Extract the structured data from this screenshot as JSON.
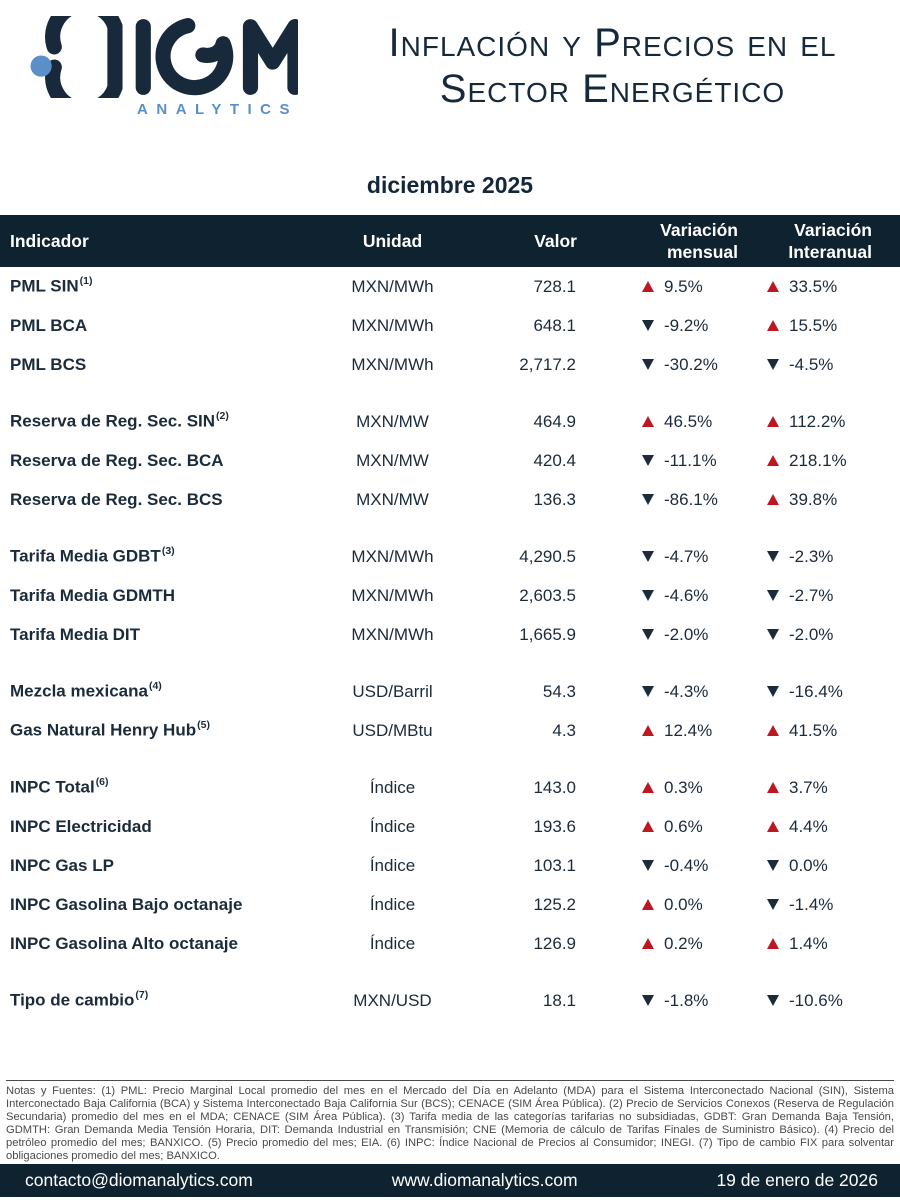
{
  "colors": {
    "navy": "#0e2230",
    "ink": "#1b2b3a",
    "blue": "#5b8fc9",
    "red": "#bd1722"
  },
  "logo": {
    "name": "DIOM",
    "sub": "ANALYTICS"
  },
  "title": {
    "line1": "Inflación y Precios en el",
    "line2": "Sector Energético"
  },
  "period": "diciembre 2025",
  "table": {
    "headers": {
      "indicator": "Indicador",
      "unit": "Unidad",
      "value": "Valor",
      "monthly_line1": "Variación",
      "monthly_line2": "mensual",
      "yearly_line1": "Variación",
      "yearly_line2": "Interanual"
    },
    "legend": {
      "up_icon": "red-up-triangle",
      "down_icon": "navy-down-triangle"
    },
    "groups": [
      [
        {
          "indicator": "PML SIN",
          "sup": "(1)",
          "unit": "MXN/MWh",
          "value": "728.1",
          "monthly": {
            "dir": "up",
            "value": "9.5%"
          },
          "yearly": {
            "dir": "up",
            "value": "33.5%"
          }
        },
        {
          "indicator": "PML BCA",
          "sup": "",
          "unit": "MXN/MWh",
          "value": "648.1",
          "monthly": {
            "dir": "down",
            "value": "-9.2%"
          },
          "yearly": {
            "dir": "up",
            "value": "15.5%"
          }
        },
        {
          "indicator": "PML BCS",
          "sup": "",
          "unit": "MXN/MWh",
          "value": "2,717.2",
          "monthly": {
            "dir": "down",
            "value": "-30.2%"
          },
          "yearly": {
            "dir": "down",
            "value": "-4.5%"
          }
        }
      ],
      [
        {
          "indicator": "Reserva de Reg. Sec. SIN",
          "sup": "(2)",
          "unit": "MXN/MW",
          "value": "464.9",
          "monthly": {
            "dir": "up",
            "value": "46.5%"
          },
          "yearly": {
            "dir": "up",
            "value": "112.2%"
          }
        },
        {
          "indicator": "Reserva de Reg. Sec. BCA",
          "sup": "",
          "unit": "MXN/MW",
          "value": "420.4",
          "monthly": {
            "dir": "down",
            "value": "-11.1%"
          },
          "yearly": {
            "dir": "up",
            "value": "218.1%"
          }
        },
        {
          "indicator": "Reserva de Reg. Sec. BCS",
          "sup": "",
          "unit": "MXN/MW",
          "value": "136.3",
          "monthly": {
            "dir": "down",
            "value": "-86.1%"
          },
          "yearly": {
            "dir": "up",
            "value": "39.8%"
          }
        }
      ],
      [
        {
          "indicator": "Tarifa Media GDBT",
          "sup": "(3)",
          "unit": "MXN/MWh",
          "value": "4,290.5",
          "monthly": {
            "dir": "down",
            "value": "-4.7%"
          },
          "yearly": {
            "dir": "down",
            "value": "-2.3%"
          }
        },
        {
          "indicator": "Tarifa Media GDMTH",
          "sup": "",
          "unit": "MXN/MWh",
          "value": "2,603.5",
          "monthly": {
            "dir": "down",
            "value": "-4.6%"
          },
          "yearly": {
            "dir": "down",
            "value": "-2.7%"
          }
        },
        {
          "indicator": "Tarifa Media DIT",
          "sup": "",
          "unit": "MXN/MWh",
          "value": "1,665.9",
          "monthly": {
            "dir": "down",
            "value": "-2.0%"
          },
          "yearly": {
            "dir": "down",
            "value": "-2.0%"
          }
        }
      ],
      [
        {
          "indicator": "Mezcla mexicana",
          "sup": "(4)",
          "unit": "USD/Barril",
          "value": "54.3",
          "monthly": {
            "dir": "down",
            "value": "-4.3%"
          },
          "yearly": {
            "dir": "down",
            "value": "-16.4%"
          }
        },
        {
          "indicator": "Gas Natural Henry Hub",
          "sup": "(5)",
          "unit": "USD/MBtu",
          "value": "4.3",
          "monthly": {
            "dir": "up",
            "value": "12.4%"
          },
          "yearly": {
            "dir": "up",
            "value": "41.5%"
          }
        }
      ],
      [
        {
          "indicator": "INPC Total",
          "sup": "(6)",
          "unit": "Índice",
          "value": "143.0",
          "monthly": {
            "dir": "up",
            "value": "0.3%"
          },
          "yearly": {
            "dir": "up",
            "value": "3.7%"
          }
        },
        {
          "indicator": "INPC Electricidad",
          "sup": "",
          "unit": "Índice",
          "value": "193.6",
          "monthly": {
            "dir": "up",
            "value": "0.6%"
          },
          "yearly": {
            "dir": "up",
            "value": "4.4%"
          }
        },
        {
          "indicator": "INPC Gas LP",
          "sup": "",
          "unit": "Índice",
          "value": "103.1",
          "monthly": {
            "dir": "down",
            "value": "-0.4%"
          },
          "yearly": {
            "dir": "down",
            "value": "0.0%"
          }
        },
        {
          "indicator": "INPC Gasolina Bajo octanaje",
          "sup": "",
          "unit": "Índice",
          "value": "125.2",
          "monthly": {
            "dir": "up",
            "value": "0.0%"
          },
          "yearly": {
            "dir": "down",
            "value": "-1.4%"
          }
        },
        {
          "indicator": "INPC Gasolina Alto octanaje",
          "sup": "",
          "unit": "Índice",
          "value": "126.9",
          "monthly": {
            "dir": "up",
            "value": "0.2%"
          },
          "yearly": {
            "dir": "up",
            "value": "1.4%"
          }
        }
      ],
      [
        {
          "indicator": "Tipo de cambio",
          "sup": "(7)",
          "unit": "MXN/USD",
          "value": "18.1",
          "monthly": {
            "dir": "down",
            "value": "-1.8%"
          },
          "yearly": {
            "dir": "down",
            "value": "-10.6%"
          }
        }
      ]
    ]
  },
  "notes": "Notas y Fuentes: (1) PML: Precio Marginal Local promedio del mes en el Mercado del Día en Adelanto (MDA) para el Sistema Interconectado Nacional (SIN), Sistema Interconectado Baja California (BCA) y Sistema Interconectado Baja California Sur (BCS); CENACE (SIM Área Pública). (2) Precio de Servicios Conexos (Reserva de Regulación Secundaria) promedio del mes en el MDA; CENACE (SIM Área Pública). (3) Tarifa media de las categorías tarifarias no subsidiadas, GDBT: Gran Demanda Baja Tensión, GDMTH: Gran Demanda Media Tensión Horaria, DIT: Demanda Industrial en Transmisión; CNE (Memoria de cálculo de Tarifas Finales de Suministro Básico). (4) Precio del petróleo promedio del mes; BANXICO. (5) Precio promedio del mes; EIA. (6) INPC: Índice Nacional de Precios al Consumidor; INEGI. (7) Tipo de cambio FIX para solventar obligaciones promedio del mes; BANXICO.",
  "footer": {
    "contact": "contacto@diomanalytics.com",
    "website": "www.diomanalytics.com",
    "date": "19 de enero de 2026"
  }
}
